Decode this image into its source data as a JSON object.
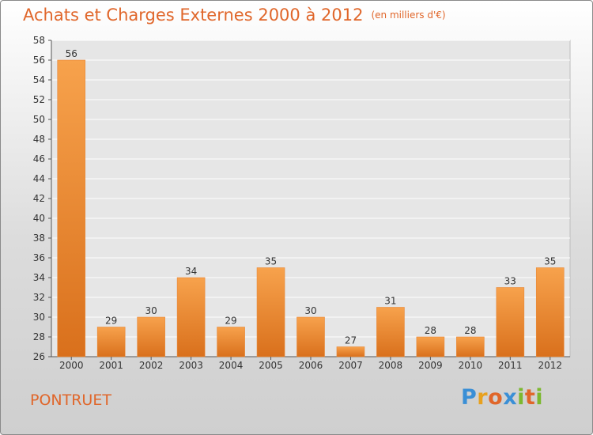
{
  "chart_data": {
    "type": "bar",
    "title": "Achats et Charges Externes 2000 à 2012",
    "subtitle": "(en milliers d'€)",
    "categories": [
      "2000",
      "2001",
      "2002",
      "2003",
      "2004",
      "2005",
      "2006",
      "2007",
      "2008",
      "2009",
      "2010",
      "2011",
      "2012"
    ],
    "values": [
      56,
      29,
      30,
      34,
      29,
      35,
      30,
      27,
      31,
      28,
      28,
      33,
      35
    ],
    "ylim": [
      26,
      58
    ],
    "yticks": [
      26,
      28,
      30,
      32,
      34,
      36,
      38,
      40,
      42,
      44,
      46,
      48,
      50,
      52,
      54,
      56,
      58
    ],
    "grid": true,
    "bar_color": "#f0913c"
  },
  "place": "PONTRUET",
  "logo": {
    "letters": [
      "P",
      "r",
      "o",
      "x",
      "i",
      "t",
      "i"
    ],
    "colors": [
      "#3a8fd6",
      "#e8a11e",
      "#e0662a",
      "#3a8fd6",
      "#7cb82f",
      "#e0662a",
      "#7cb82f"
    ]
  }
}
